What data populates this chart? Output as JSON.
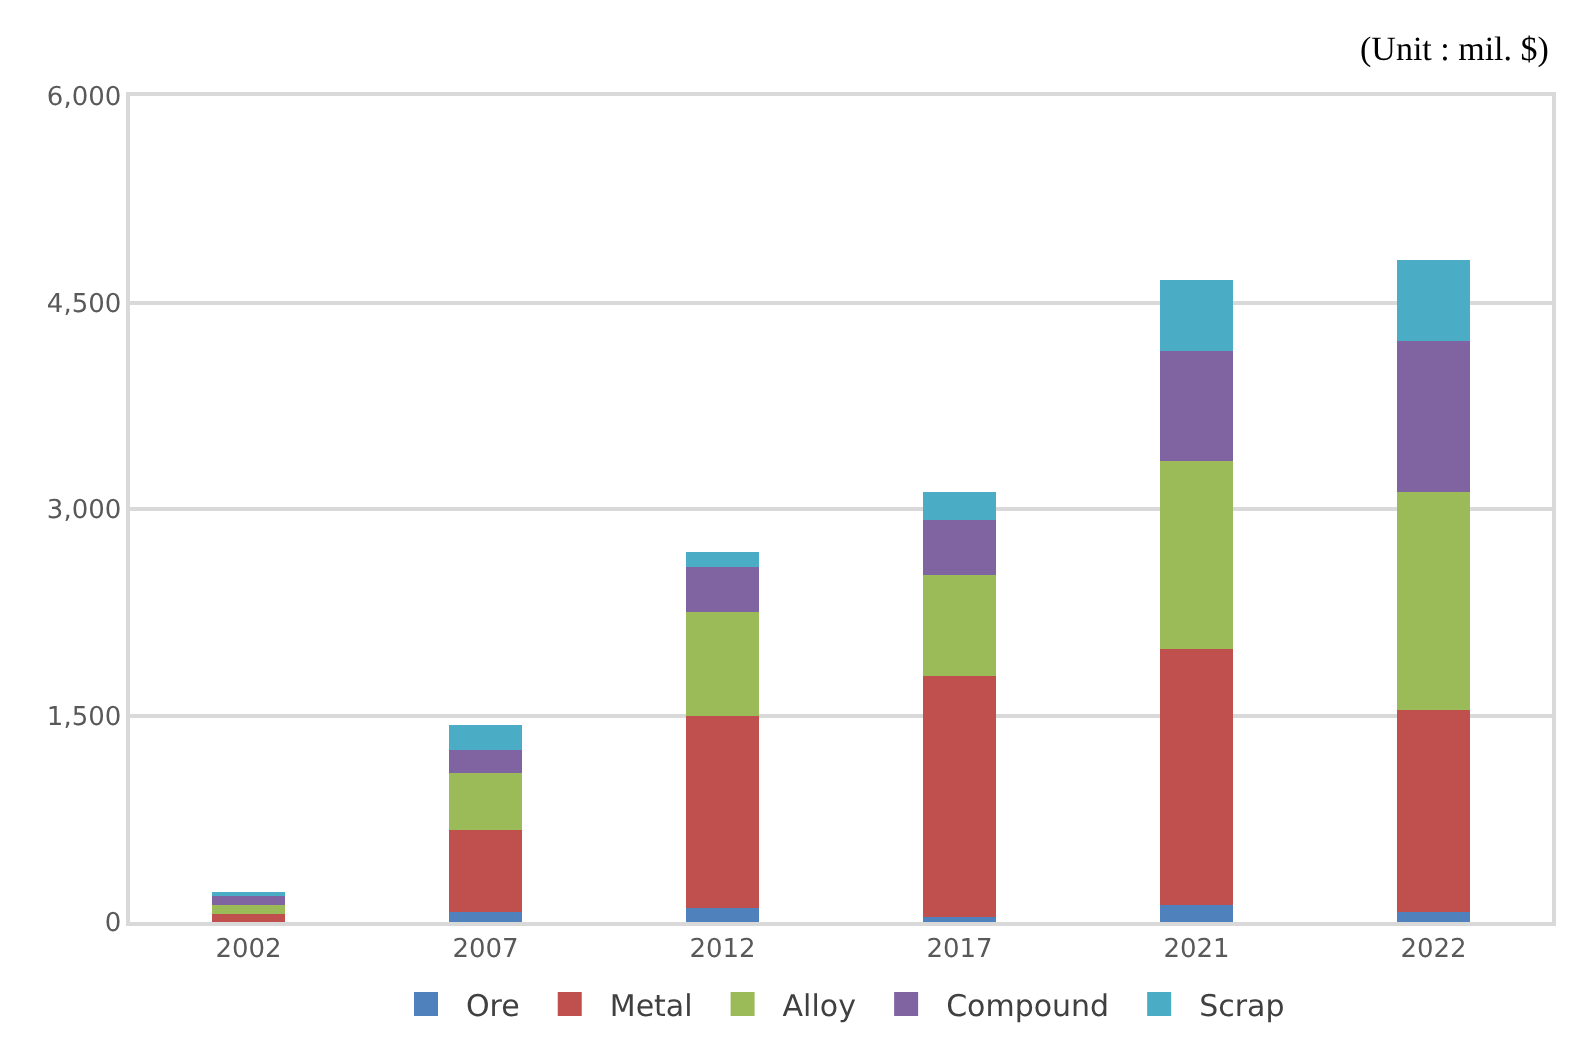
{
  "chart_data": {
    "type": "bar",
    "stacked": true,
    "categories": [
      "2002",
      "2007",
      "2012",
      "2017",
      "2021",
      "2022"
    ],
    "series": [
      {
        "name": "Ore",
        "color": "#4f81bd",
        "values": [
          null,
          70,
          100,
          40,
          120,
          70
        ]
      },
      {
        "name": "Metal",
        "color": "#c0504d",
        "values": [
          60,
          600,
          1400,
          1750,
          1860,
          1470
        ]
      },
      {
        "name": "Alloy",
        "color": "#9bbb59",
        "values": [
          60,
          410,
          750,
          730,
          1370,
          1580
        ]
      },
      {
        "name": "Compound",
        "color": "#8064a2",
        "values": [
          80,
          170,
          330,
          400,
          800,
          1100
        ]
      },
      {
        "name": "Scrap",
        "color": "#4bacc6",
        "values": [
          20,
          180,
          110,
          200,
          510,
          590
        ]
      }
    ],
    "ylim": [
      0,
      6000
    ],
    "yticks": [
      0,
      {
        "value": 1500,
        "label": "1,500"
      },
      {
        "value": 3000,
        "label": "3,000"
      },
      {
        "value": 4500,
        "label": "4,500"
      },
      {
        "value": 6000,
        "label": "6,000"
      }
    ],
    "grid": "y",
    "legend": "bottom",
    "annotations": [
      "(Unit : mil. $)"
    ]
  }
}
